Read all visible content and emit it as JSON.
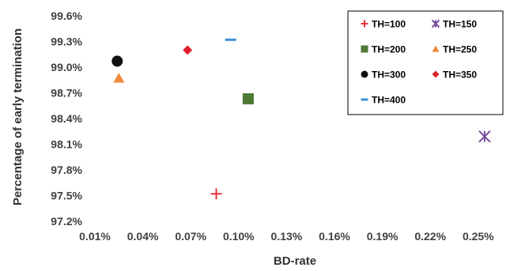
{
  "chart_data": {
    "type": "scatter",
    "title": "",
    "xlabel": "BD-rate",
    "ylabel": "Percentage of early termination",
    "xlim": [
      0.01,
      0.26
    ],
    "ylim": [
      97.2,
      99.6
    ],
    "x_ticks": [
      "0.01%",
      "0.04%",
      "0.07%",
      "0.10%",
      "0.13%",
      "0.16%",
      "0.19%",
      "0.22%",
      "0.25%"
    ],
    "y_ticks": [
      "97.2%",
      "97.5%",
      "97.8%",
      "98.1%",
      "98.4%",
      "98.7%",
      "99.0%",
      "99.3%",
      "99.6%"
    ],
    "x_tick_values": [
      0.01,
      0.04,
      0.07,
      0.1,
      0.13,
      0.16,
      0.19,
      0.22,
      0.25
    ],
    "y_tick_values": [
      97.2,
      97.5,
      97.8,
      98.1,
      98.4,
      98.7,
      99.0,
      99.3,
      99.6
    ],
    "grid": false,
    "legend_position": "top-right",
    "series": [
      {
        "name": "TH=100",
        "x": 0.086,
        "y": 97.52,
        "marker": "plus",
        "color": "#e8303a"
      },
      {
        "name": "TH=150",
        "x": 0.254,
        "y": 98.19,
        "marker": "asterisk",
        "color": "#7b4ea0"
      },
      {
        "name": "TH=200",
        "x": 0.106,
        "y": 98.63,
        "marker": "square",
        "color": "#4e7a35"
      },
      {
        "name": "TH=250",
        "x": 0.025,
        "y": 98.87,
        "marker": "triangle",
        "color": "#f08a3c"
      },
      {
        "name": "TH=300",
        "x": 0.024,
        "y": 99.07,
        "marker": "circle",
        "color": "#111111"
      },
      {
        "name": "TH=350",
        "x": 0.068,
        "y": 99.2,
        "marker": "diamond",
        "color": "#e0202a"
      },
      {
        "name": "TH=400",
        "x": 0.095,
        "y": 99.32,
        "marker": "dash",
        "color": "#3d8fd6"
      }
    ]
  }
}
